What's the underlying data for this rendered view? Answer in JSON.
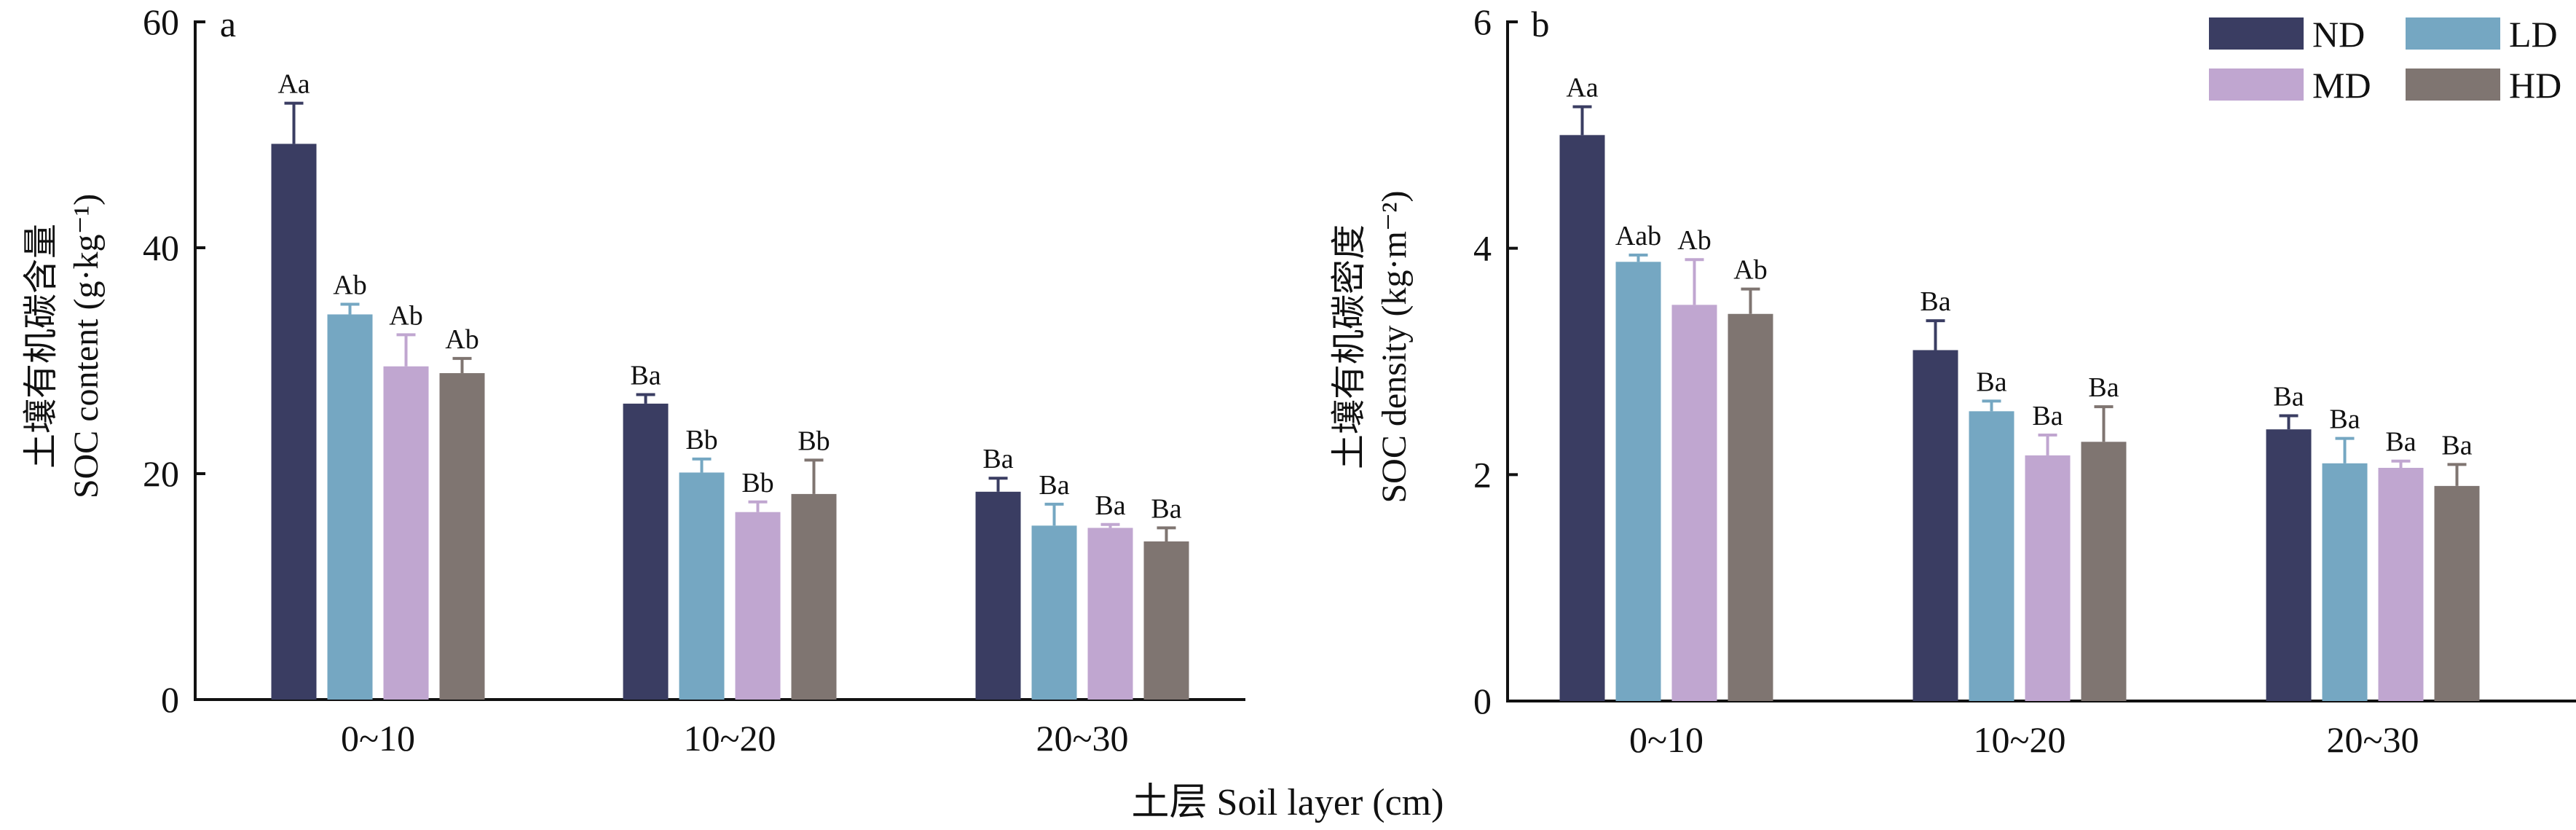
{
  "colors": {
    "ND": "#3a3d62",
    "LD": "#75a7c2",
    "MD": "#c0a6d0",
    "HD": "#7f7571"
  },
  "legend": {
    "items": [
      "ND",
      "LD",
      "MD",
      "HD"
    ]
  },
  "x_axis_title": "土层 Soil layer (cm)",
  "chart_data": [
    {
      "type": "bar",
      "panel": "a",
      "ylabel_cn": "土壤有机碳含量",
      "ylabel_en": "SOC content (g·kg⁻¹)",
      "ylim": [
        0,
        60
      ],
      "yticks": [
        0,
        20,
        40,
        60
      ],
      "categories": [
        "0~10",
        "10~20",
        "20~30"
      ],
      "series": [
        {
          "name": "ND",
          "values": [
            49.2,
            26.2,
            18.4
          ],
          "errors": [
            3.6,
            0.8,
            1.2
          ],
          "labels": [
            "Aa",
            "Ba",
            "Ba"
          ]
        },
        {
          "name": "LD",
          "values": [
            34.1,
            20.1,
            15.4
          ],
          "errors": [
            0.9,
            1.2,
            1.9
          ],
          "labels": [
            "Ab",
            "Bb",
            "Ba"
          ]
        },
        {
          "name": "MD",
          "values": [
            29.5,
            16.6,
            15.2
          ],
          "errors": [
            2.8,
            0.9,
            0.3
          ],
          "labels": [
            "Ab",
            "Bb",
            "Ba"
          ]
        },
        {
          "name": "HD",
          "values": [
            28.9,
            18.2,
            14.0
          ],
          "errors": [
            1.3,
            3.0,
            1.2
          ],
          "labels": [
            "Ab",
            "Bb",
            "Ba"
          ]
        }
      ]
    },
    {
      "type": "bar",
      "panel": "b",
      "ylabel_cn": "土壤有机碳密度",
      "ylabel_en": "SOC density (kg·m⁻²)",
      "ylim": [
        0,
        6
      ],
      "yticks": [
        0,
        2,
        4,
        6
      ],
      "categories": [
        "0~10",
        "10~20",
        "20~30"
      ],
      "series": [
        {
          "name": "ND",
          "values": [
            5.0,
            3.1,
            2.4
          ],
          "errors": [
            0.25,
            0.26,
            0.12
          ],
          "labels": [
            "Aa",
            "Ba",
            "Ba"
          ]
        },
        {
          "name": "LD",
          "values": [
            3.88,
            2.56,
            2.1
          ],
          "errors": [
            0.06,
            0.09,
            0.22
          ],
          "labels": [
            "Aab",
            "Ba",
            "Ba"
          ]
        },
        {
          "name": "MD",
          "values": [
            3.5,
            2.17,
            2.06
          ],
          "errors": [
            0.4,
            0.18,
            0.06
          ],
          "labels": [
            "Ab",
            "Ba",
            "Ba"
          ]
        },
        {
          "name": "HD",
          "values": [
            3.42,
            2.29,
            1.9
          ],
          "errors": [
            0.22,
            0.31,
            0.19
          ],
          "labels": [
            "Ab",
            "Ba",
            "Ba"
          ]
        }
      ]
    }
  ]
}
